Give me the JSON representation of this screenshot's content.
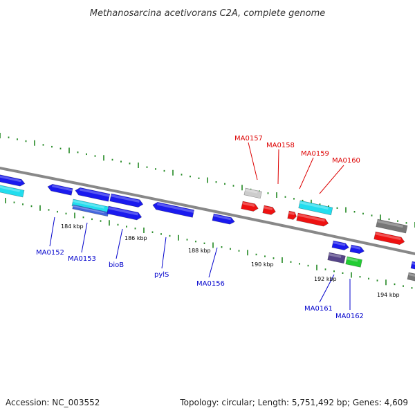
{
  "title": "Methanosarcina acetivorans C2A, complete genome",
  "footer": {
    "accession": "Accession: NC_003552",
    "summary": "Topology: circular; Length: 5,751,492 bp; Genes: 4,609"
  },
  "scale_labels": [
    "184 kbp",
    "186 kbp",
    "188 kbp",
    "190 kbp",
    "192 kbp",
    "194 kbp"
  ],
  "genes": {
    "top": [
      "MA0157",
      "MA0158",
      "MA0159",
      "MA0160"
    ],
    "bottom": [
      "MA0152",
      "MA0153",
      "bioB",
      "pylS",
      "MA0156",
      "MA0161",
      "MA0162"
    ]
  },
  "colors": {
    "top_label": "#dd0000",
    "bottom_label": "#0000cc",
    "backbone": "#888888",
    "tick": "#228822",
    "blue": "#1a1aee",
    "cyan": "#22ddee",
    "red": "#ee1111",
    "gray": "#777777",
    "lightgray": "#cccccc",
    "purple": "#554488",
    "green": "#22cc33"
  }
}
